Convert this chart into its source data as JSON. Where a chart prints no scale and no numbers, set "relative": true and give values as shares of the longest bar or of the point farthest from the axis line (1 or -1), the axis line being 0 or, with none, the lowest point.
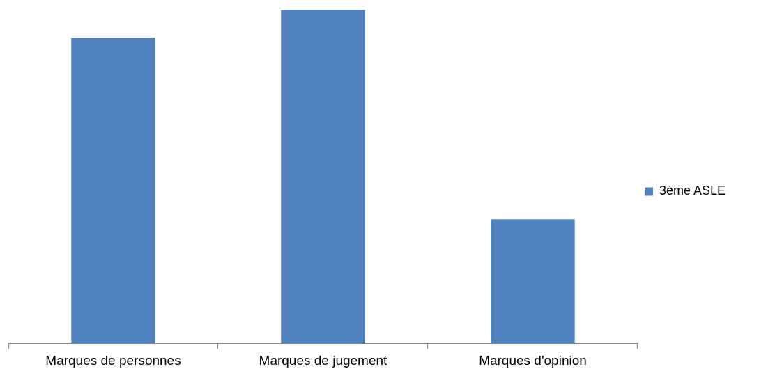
{
  "chart_data": {
    "type": "bar",
    "relative": true,
    "categories": [
      "Marques de personnes",
      "Marques de jugement",
      "Marques d'opinion"
    ],
    "series": [
      {
        "name": "3ème ASLE",
        "color": "#4f81bd",
        "values": [
          0.916,
          1,
          0.372
        ]
      }
    ],
    "legend": "right",
    "grid": false
  }
}
